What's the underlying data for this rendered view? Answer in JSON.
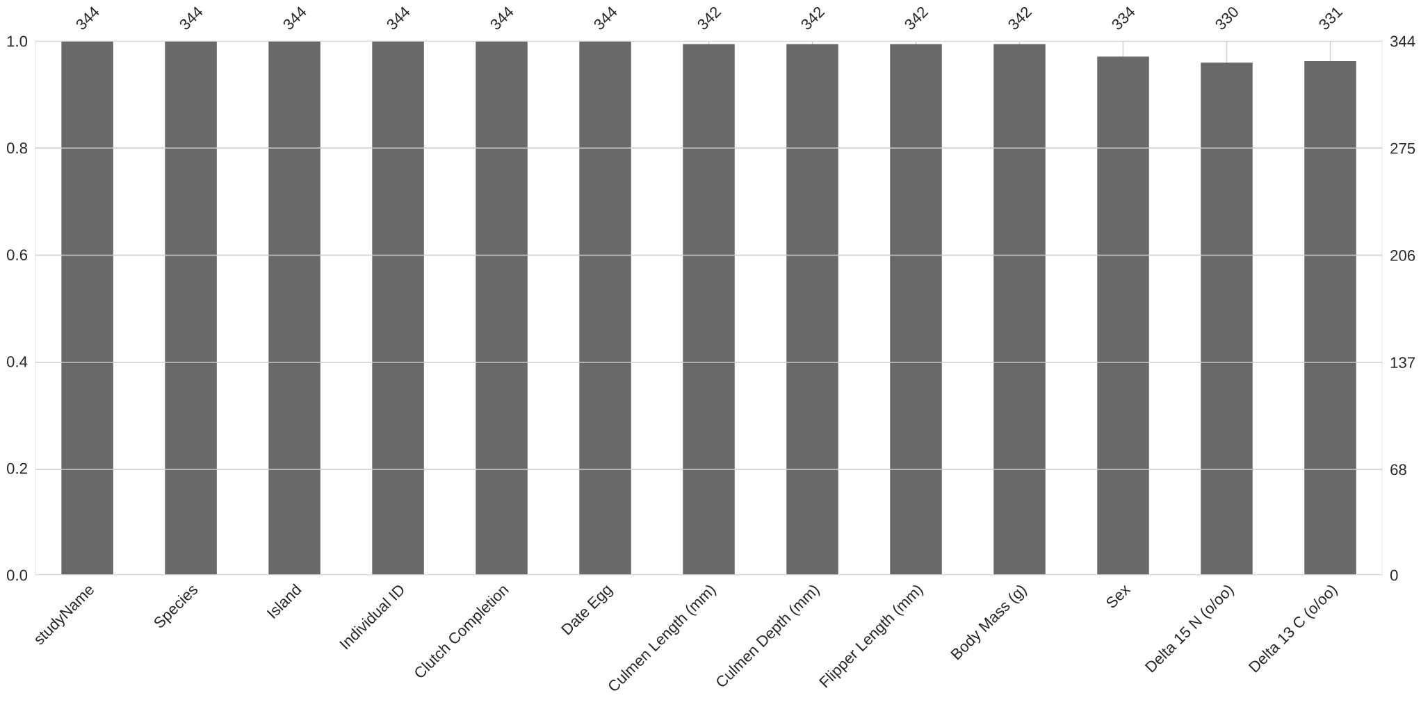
{
  "chart_data": {
    "type": "bar",
    "categories": [
      "studyName",
      "Species",
      "Island",
      "Individual ID",
      "Clutch Completion",
      "Date Egg",
      "Culmen Length (mm)",
      "Culmen Depth (mm)",
      "Flipper Length (mm)",
      "Body Mass (g)",
      "Sex",
      "Delta 15 N (o/oo)",
      "Delta 13 C (o/oo)"
    ],
    "series": [
      {
        "color": "#696969",
        "axis": "y2",
        "values": [
          344,
          344,
          344,
          344,
          344,
          344,
          342,
          342,
          342,
          342,
          334,
          330,
          331
        ]
      }
    ],
    "ylim": [
      0,
      1
    ],
    "yticks": [
      {
        "value": 0,
        "label": "0.0"
      },
      0.2,
      0.4,
      0.6,
      0.8,
      {
        "value": 1,
        "label": "1.0"
      }
    ],
    "y2lim": [
      0,
      344
    ],
    "y2ticks": [
      0,
      68,
      137,
      206,
      275,
      344
    ],
    "data_labels": true,
    "grid": true
  }
}
